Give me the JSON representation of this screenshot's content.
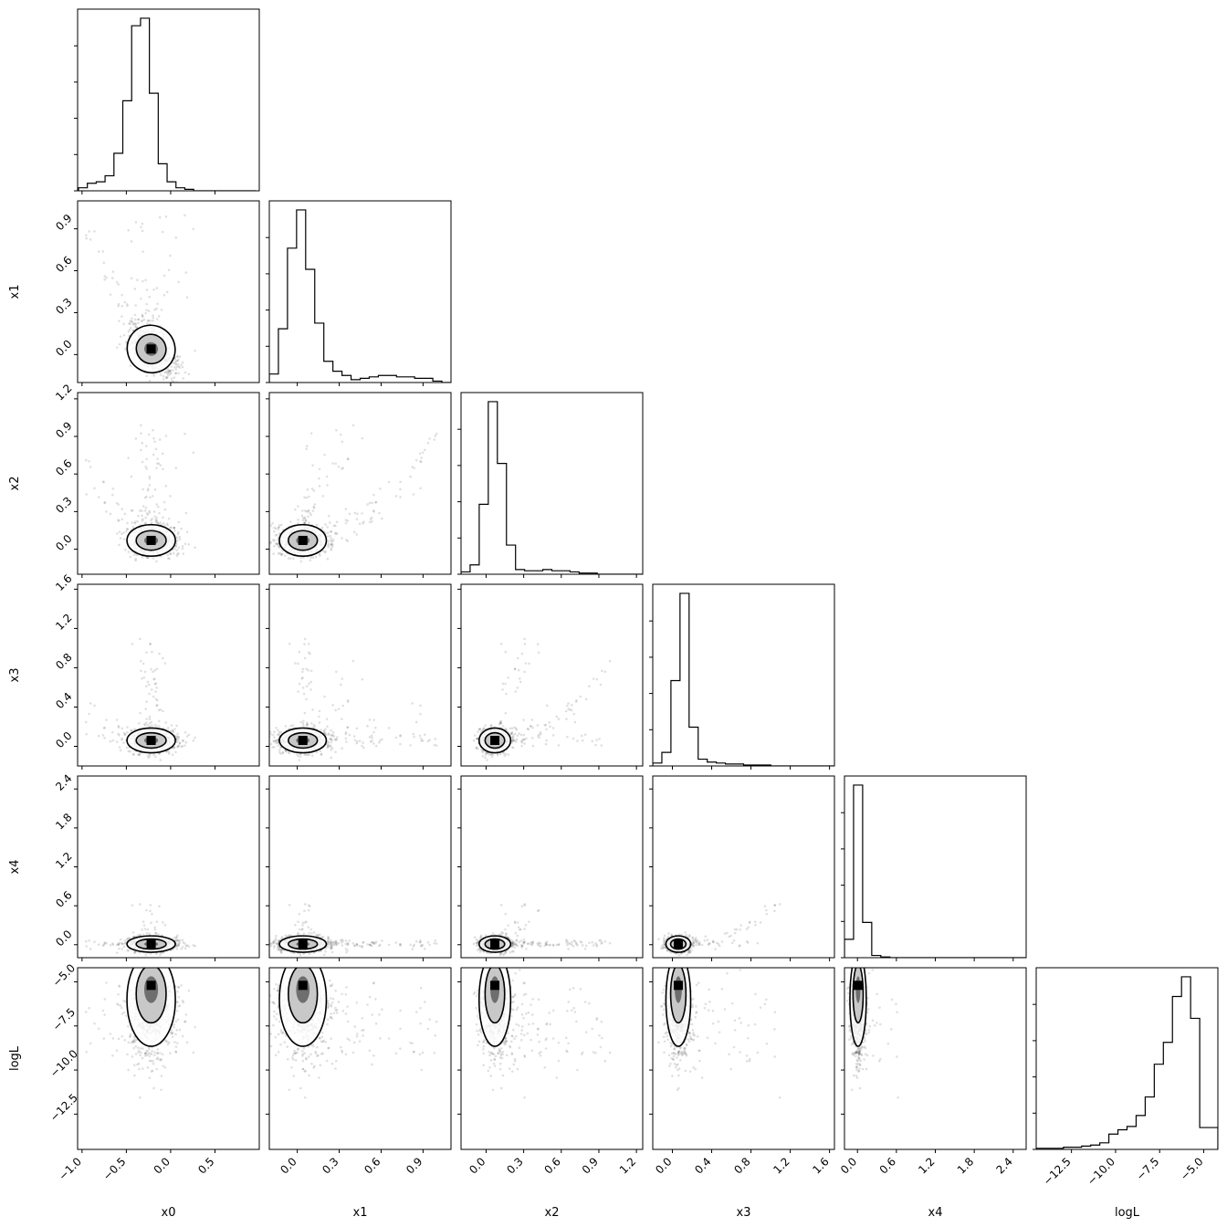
{
  "chart_data": {
    "type": "corner",
    "title": "",
    "parameters": [
      {
        "name": "x0",
        "range": [
          -1.05,
          1.0
        ],
        "ticks": [
          -1.0,
          -0.5,
          0.0,
          0.5
        ],
        "tick_labels": [
          "−1.0",
          "−0.5",
          "0.0",
          "0.5"
        ],
        "peak": -0.22,
        "spread": 0.13
      },
      {
        "name": "x1",
        "range": [
          -0.2,
          1.1
        ],
        "ticks": [
          0.0,
          0.3,
          0.6,
          0.9
        ],
        "tick_labels": [
          "0.0",
          "0.3",
          "0.6",
          "0.9"
        ],
        "peak": 0.04,
        "spread": 0.08
      },
      {
        "name": "x2",
        "range": [
          -0.2,
          1.25
        ],
        "ticks": [
          0.0,
          0.3,
          0.6,
          0.9,
          1.2
        ],
        "tick_labels": [
          "0.0",
          "0.3",
          "0.6",
          "0.9",
          "1.2"
        ],
        "peak": 0.07,
        "spread": 0.06
      },
      {
        "name": "x3",
        "range": [
          -0.2,
          1.65
        ],
        "ticks": [
          0.0,
          0.4,
          0.8,
          1.2,
          1.6
        ],
        "tick_labels": [
          "0.0",
          "0.4",
          "0.8",
          "1.2",
          "1.6"
        ],
        "peak": 0.06,
        "spread": 0.06
      },
      {
        "name": "x4",
        "range": [
          -0.2,
          2.6
        ],
        "ticks": [
          0.0,
          0.6,
          1.2,
          1.8,
          2.4
        ],
        "tick_labels": [
          "0.0",
          "0.6",
          "1.2",
          "1.8",
          "2.4"
        ],
        "peak": 0.01,
        "spread": 0.06
      },
      {
        "name": "logL",
        "range": [
          -14.5,
          -4.2
        ],
        "ticks": [
          -12.5,
          -10.0,
          -7.5,
          -5.0
        ],
        "tick_labels": [
          "−12.5",
          "−10.0",
          "−7.5",
          "−5.0"
        ],
        "peak": -5.2,
        "spread": 0.9
      }
    ],
    "histograms": {
      "x0": {
        "bin_edges": [
          -1.04,
          -0.94,
          -0.84,
          -0.74,
          -0.64,
          -0.54,
          -0.44,
          -0.34,
          -0.24,
          -0.14,
          -0.04,
          0.06,
          0.16,
          0.26,
          0.36,
          0.46,
          0.56,
          0.66,
          0.76,
          0.86,
          0.96
        ],
        "counts": [
          2,
          5,
          6,
          10,
          25,
          60,
          110,
          115,
          65,
          18,
          6,
          2,
          1,
          0,
          0,
          0,
          0,
          0,
          0,
          0
        ]
      },
      "x1": {
        "bin_edges": [
          -0.2,
          -0.135,
          -0.07,
          -0.005,
          0.06,
          0.125,
          0.19,
          0.255,
          0.32,
          0.385,
          0.45,
          0.515,
          0.58,
          0.645,
          0.71,
          0.775,
          0.84,
          0.905,
          0.97,
          1.035,
          1.1
        ],
        "counts": [
          6,
          38,
          95,
          122,
          80,
          42,
          15,
          8,
          5,
          2,
          3,
          4,
          5,
          5,
          4,
          4,
          3,
          3,
          1,
          0
        ]
      },
      "x2": {
        "bin_edges": [
          -0.2,
          -0.1275,
          -0.055,
          0.0175,
          0.09,
          0.1625,
          0.235,
          0.3075,
          0.38,
          0.4525,
          0.525,
          0.5975,
          0.67,
          0.7425,
          0.815,
          0.8875,
          0.96,
          1.0325,
          1.105,
          1.1775,
          1.25
        ],
        "counts": [
          2,
          8,
          60,
          148,
          95,
          25,
          4,
          3,
          3,
          4,
          3,
          3,
          2,
          1,
          1,
          0,
          0,
          0,
          0,
          0
        ]
      },
      "x3": {
        "bin_edges": [
          -0.2,
          -0.1075,
          -0.015,
          0.0775,
          0.17,
          0.2625,
          0.355,
          0.4475,
          0.54,
          0.6325,
          0.725,
          0.8175,
          0.91,
          1.0025,
          1.095,
          1.1875,
          1.28,
          1.3725,
          1.465,
          1.5575,
          1.65
        ],
        "counts": [
          3,
          14,
          88,
          178,
          40,
          7,
          4,
          3,
          2,
          2,
          1,
          1,
          1,
          0,
          0,
          0,
          0,
          0,
          0,
          0
        ]
      },
      "x4": {
        "bin_edges": [
          -0.2,
          -0.06,
          0.08,
          0.22,
          0.36,
          0.5,
          0.64,
          0.78,
          0.92,
          1.06,
          1.2,
          1.34,
          1.48,
          1.62,
          1.76,
          1.9,
          2.04,
          2.18,
          2.32,
          2.46,
          2.6
        ],
        "counts": [
          25,
          235,
          48,
          3,
          1,
          0,
          0,
          0,
          0,
          0,
          0,
          0,
          0,
          0,
          0,
          0,
          0,
          0,
          0,
          0
        ]
      },
      "logL": {
        "bin_edges": [
          -14.5,
          -13.985,
          -13.47,
          -12.955,
          -12.44,
          -11.925,
          -11.41,
          -10.895,
          -10.38,
          -9.865,
          -9.35,
          -8.835,
          -8.32,
          -7.805,
          -7.29,
          -6.775,
          -6.26,
          -5.745,
          -5.23,
          -4.715,
          -4.2
        ],
        "counts": [
          1,
          1,
          1,
          2,
          2,
          3,
          4,
          6,
          14,
          18,
          21,
          31,
          48,
          78,
          98,
          140,
          158,
          120,
          20,
          20
        ]
      }
    },
    "hist_y_tick_fractions": [
      0.0,
      0.2,
      0.4,
      0.6,
      0.8
    ],
    "contours": "2D density contours at 1σ and 2σ around the mode; grey scatter of samples outside",
    "grid": false,
    "legend": "none"
  }
}
